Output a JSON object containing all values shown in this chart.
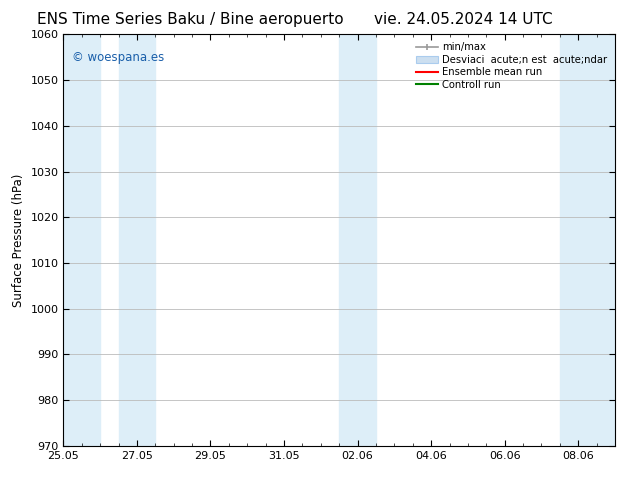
{
  "title_left": "ENS Time Series Baku / Bine aeropuerto",
  "title_right": "vie. 24.05.2024 14 UTC",
  "ylabel": "Surface Pressure (hPa)",
  "ylim": [
    970,
    1060
  ],
  "yticks": [
    970,
    980,
    990,
    1000,
    1010,
    1020,
    1030,
    1040,
    1050,
    1060
  ],
  "xtick_labels": [
    "25.05",
    "27.05",
    "29.05",
    "31.05",
    "02.06",
    "04.06",
    "06.06",
    "08.06"
  ],
  "xtick_positions": [
    0,
    2,
    4,
    6,
    8,
    10,
    12,
    14
  ],
  "shaded_bands": [
    {
      "x_start": 0.0,
      "x_end": 1.0
    },
    {
      "x_start": 1.5,
      "x_end": 2.5
    },
    {
      "x_start": 7.5,
      "x_end": 8.5
    },
    {
      "x_start": 13.5,
      "x_end": 15.0
    }
  ],
  "shaded_color": "#ddeef8",
  "watermark": "© woespana.es",
  "watermark_color": "#1a5faa",
  "legend_label_minmax": "min/max",
  "legend_label_desv": "Desviaci  acute;n est  acute;ndar",
  "legend_label_ens": "Ensemble mean run",
  "legend_label_ctrl": "Controll run",
  "xmin": 0,
  "xmax": 15,
  "background_color": "white",
  "grid_color": "#bbbbbb",
  "title_fontsize": 11,
  "label_fontsize": 8.5,
  "tick_fontsize": 8
}
